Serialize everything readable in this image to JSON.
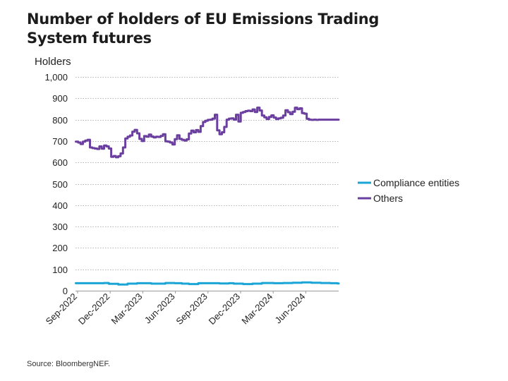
{
  "title": "Number of holders of EU Emissions Trading System futures",
  "source": "Source: BloombergNEF.",
  "chart_data": {
    "type": "line",
    "title": "Number of holders of EU Emissions Trading System futures",
    "ylabel": "Holders",
    "xlabel": "",
    "ylim": [
      0,
      1000
    ],
    "yticks": [
      0,
      100,
      200,
      300,
      400,
      500,
      600,
      700,
      800,
      900,
      1000
    ],
    "ytick_labels": [
      "0",
      "100",
      "200",
      "300",
      "400",
      "500",
      "600",
      "700",
      "800",
      "900",
      "1,000"
    ],
    "xtick_labels": [
      "Sep-2022",
      "Dec-2022",
      "Mar-2023",
      "Jun-2023",
      "Sep-2023",
      "Dec-2023",
      "Mar-2024",
      "Jun-2024"
    ],
    "legend_position": "right",
    "grid": "horizontal dotted",
    "series": [
      {
        "name": "Compliance entities",
        "color": "#1aa5d6",
        "x": [
          "2022-09-02",
          "2022-10-28",
          "2022-11-11",
          "2022-11-25",
          "2022-12-09",
          "2023-01-06",
          "2023-02-03",
          "2023-03-03",
          "2023-04-14",
          "2023-05-26",
          "2023-06-23",
          "2023-07-14",
          "2023-08-04",
          "2023-09-01",
          "2023-10-06",
          "2023-11-03",
          "2023-12-01",
          "2023-12-15",
          "2024-01-12",
          "2024-02-09",
          "2024-03-08",
          "2024-04-12",
          "2024-05-10",
          "2024-06-07",
          "2024-07-05",
          "2024-08-02",
          "2024-08-30",
          "2024-09-27",
          "2024-10-18"
        ],
        "values": [
          35,
          35,
          35,
          36,
          32,
          29,
          33,
          35,
          33,
          36,
          35,
          33,
          31,
          35,
          35,
          34,
          35,
          33,
          31,
          33,
          36,
          35,
          36,
          37,
          39,
          37,
          36,
          35,
          34
        ]
      },
      {
        "name": "Others",
        "color": "#6b3fa0",
        "x": [
          "2022-09-02",
          "2022-09-09",
          "2022-09-16",
          "2022-09-23",
          "2022-09-30",
          "2022-10-07",
          "2022-10-14",
          "2022-10-21",
          "2022-10-28",
          "2022-11-04",
          "2022-11-11",
          "2022-11-18",
          "2022-11-25",
          "2022-12-02",
          "2022-12-09",
          "2022-12-16",
          "2022-12-23",
          "2022-12-30",
          "2023-01-06",
          "2023-01-13",
          "2023-01-20",
          "2023-01-27",
          "2023-02-03",
          "2023-02-10",
          "2023-02-17",
          "2023-02-24",
          "2023-03-03",
          "2023-03-10",
          "2023-03-17",
          "2023-03-24",
          "2023-03-31",
          "2023-04-07",
          "2023-04-14",
          "2023-04-21",
          "2023-04-28",
          "2023-05-05",
          "2023-05-12",
          "2023-05-19",
          "2023-05-26",
          "2023-06-02",
          "2023-06-09",
          "2023-06-16",
          "2023-06-23",
          "2023-06-30",
          "2023-07-07",
          "2023-07-14",
          "2023-07-21",
          "2023-07-28",
          "2023-08-04",
          "2023-08-11",
          "2023-08-18",
          "2023-08-25",
          "2023-09-01",
          "2023-09-08",
          "2023-09-15",
          "2023-09-22",
          "2023-09-29",
          "2023-10-06",
          "2023-10-13",
          "2023-10-20",
          "2023-10-27",
          "2023-11-03",
          "2023-11-10",
          "2023-11-17",
          "2023-11-24",
          "2023-12-01",
          "2023-12-08",
          "2023-12-15",
          "2023-12-22",
          "2023-12-29",
          "2024-01-05",
          "2024-01-12",
          "2024-01-19",
          "2024-01-26",
          "2024-02-02",
          "2024-02-09",
          "2024-02-16",
          "2024-02-23",
          "2024-03-01",
          "2024-03-08",
          "2024-03-15",
          "2024-03-22",
          "2024-03-29",
          "2024-04-05",
          "2024-04-12",
          "2024-04-19",
          "2024-04-26",
          "2024-05-03",
          "2024-05-10",
          "2024-05-17",
          "2024-05-24",
          "2024-05-31",
          "2024-06-07",
          "2024-06-14",
          "2024-06-21",
          "2024-06-28",
          "2024-07-05",
          "2024-07-12",
          "2024-07-19",
          "2024-07-26",
          "2024-08-02",
          "2024-08-09",
          "2024-08-16",
          "2024-08-23",
          "2024-08-30",
          "2024-09-06",
          "2024-09-13",
          "2024-09-20",
          "2024-09-27",
          "2024-10-04",
          "2024-10-11",
          "2024-10-18"
        ],
        "values": [
          697,
          693,
          686,
          697,
          702,
          706,
          670,
          667,
          665,
          663,
          675,
          664,
          679,
          675,
          665,
          626,
          630,
          624,
          629,
          642,
          670,
          712,
          720,
          726,
          744,
          752,
          736,
          710,
          700,
          723,
          720,
          730,
          721,
          717,
          720,
          719,
          724,
          732,
          699,
          697,
          693,
          684,
          709,
          727,
          710,
          706,
          702,
          708,
          735,
          749,
          741,
          751,
          743,
          770,
          789,
          795,
          799,
          800,
          805,
          823,
          750,
          732,
          741,
          766,
          800,
          805,
          806,
          800,
          823,
          791,
          832,
          836,
          840,
          842,
          840,
          848,
          836,
          856,
          843,
          819,
          811,
          803,
          813,
          820,
          810,
          803,
          806,
          809,
          819,
          844,
          835,
          826,
          837,
          856,
          849,
          853,
          831,
          828,
          804,
          800,
          799,
          800,
          799,
          800,
          800,
          800,
          800,
          800,
          800,
          800,
          800,
          800
        ]
      }
    ]
  }
}
